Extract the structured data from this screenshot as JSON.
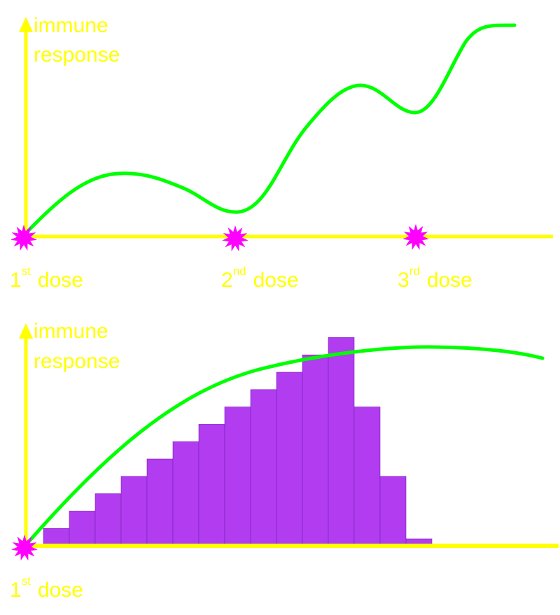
{
  "colors": {
    "axis": "#ffff00",
    "curve": "#00ff00",
    "burst": "#ff00ff",
    "bars": "#b13cf0",
    "label": "#ffff00"
  },
  "top_panel": {
    "y_axis_label": [
      "immune",
      "response"
    ],
    "doses": [
      {
        "num": "1",
        "sup": "st",
        "word": "dose"
      },
      {
        "num": "2",
        "sup": "nd",
        "word": "dose"
      },
      {
        "num": "3",
        "sup": "rd",
        "word": "dose"
      }
    ]
  },
  "bottom_panel": {
    "y_axis_label": [
      "immune",
      "response"
    ],
    "dose": {
      "num": "1",
      "sup": "st",
      "word": "dose"
    },
    "bar_levels": [
      1,
      2,
      3,
      4,
      5,
      6,
      7,
      8,
      9,
      10,
      11,
      12,
      8,
      4,
      0.4
    ]
  }
}
